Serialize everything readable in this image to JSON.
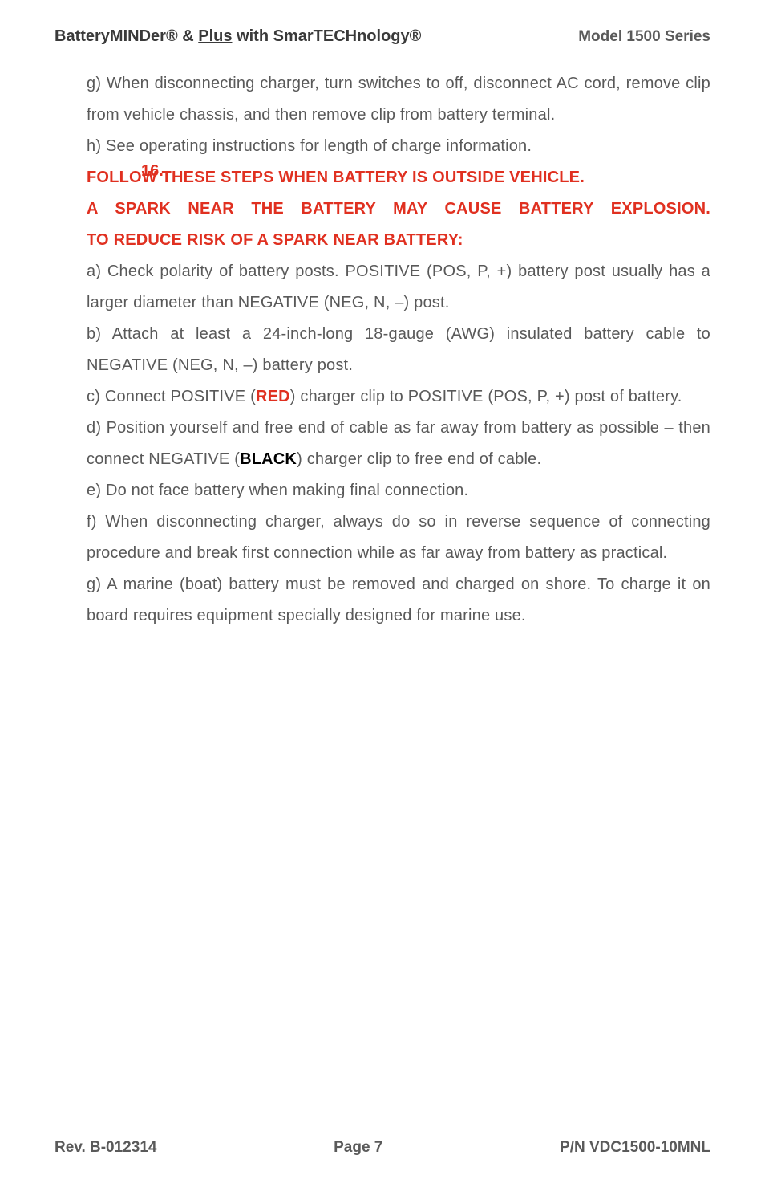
{
  "header": {
    "brand_part1": "BatteryMINDer",
    "reg1": "®",
    "amp": " & ",
    "plus": "Plus",
    "with": " with ",
    "brand_part2": "SmarTECHnology",
    "reg2": "®",
    "model": "Model 1500 Series"
  },
  "para_g": "g) When disconnecting charger, turn switches to off, disconnect AC cord, remove clip from vehicle chassis, and then remove clip from battery terminal.",
  "para_h": "h) See operating instructions for length of charge information.",
  "item16_number": "16.",
  "item16_title": "FOLLOW THESE STEPS WHEN BATTERY IS OUTSIDE VEHICLE.",
  "item16_line2": "A SPARK NEAR THE BATTERY MAY CAUSE BATTERY EXPLOSION.",
  "item16_line3": "TO REDUCE RISK OF A SPARK NEAR BATTERY:",
  "para_a": "a) Check polarity of battery posts.  POSITIVE (POS, P, +) battery post usually has a larger diameter than NEGATIVE (NEG, N, –) post.",
  "para_b": "b) Attach at least a 24-inch-long 18-gauge (AWG) insulated battery cable to NEGATIVE (NEG, N, –) battery post.",
  "para_c_pre": "c) Connect POSITIVE (",
  "para_c_red": "RED",
  "para_c_post": ") charger clip to POSITIVE (POS, P, +) post of battery.",
  "para_d_pre": "d) Position yourself and free end of cable as far away from battery as possible – then connect NEGATIVE (",
  "para_d_black": "BLACK",
  "para_d_post": ") charger clip to free end of cable.",
  "para_e": "e) Do not face battery when making final connection.",
  "para_f": "f) When disconnecting charger, always do so in reverse sequence of connecting procedure and break first connection while as far away from battery as practical.",
  "para_g2": "g) A marine (boat) battery must be removed and charged on shore.  To charge it on board requires equipment specially designed for marine use.",
  "footer": {
    "rev": "Rev. B-012314",
    "page": "Page 7",
    "pn": "P/N VDC1500-10MNL"
  }
}
